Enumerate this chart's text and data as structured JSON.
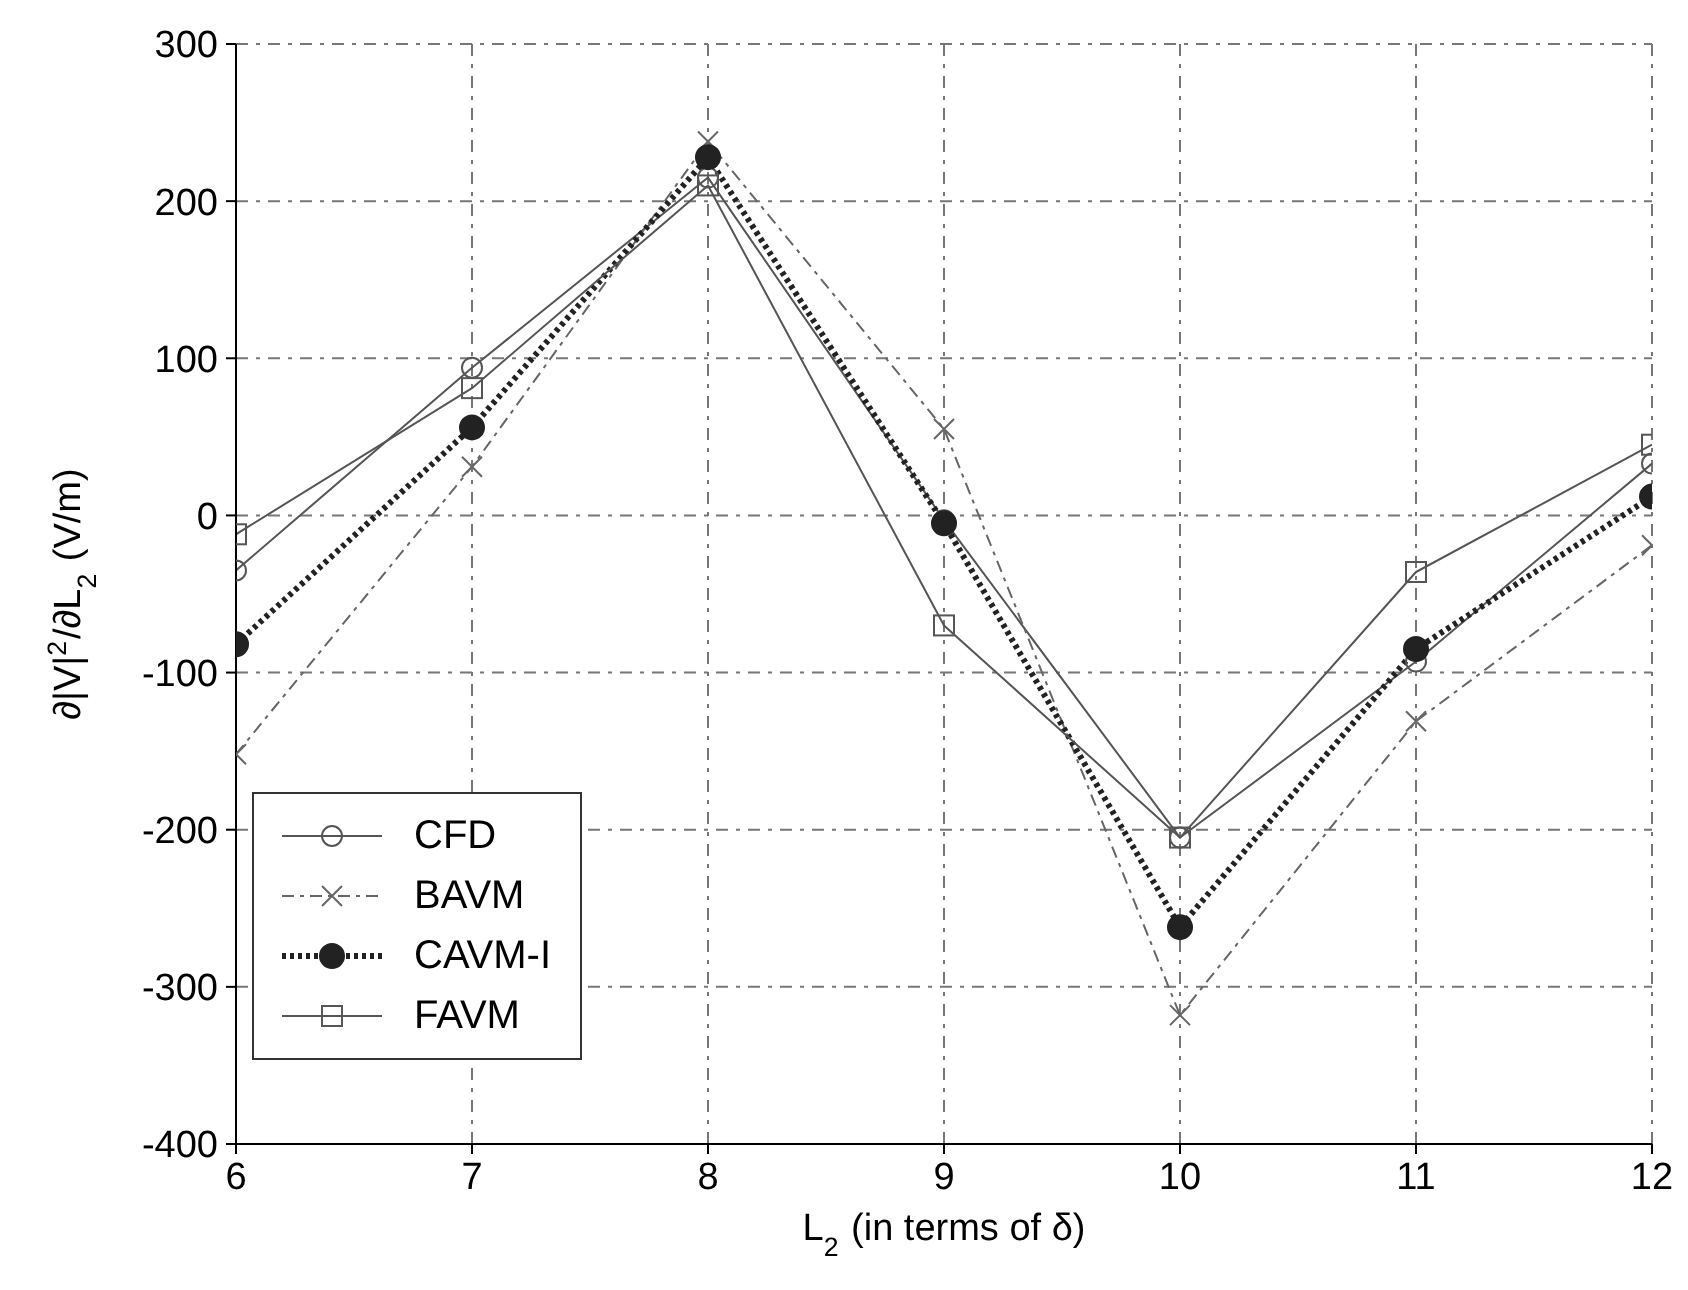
{
  "chart_data": {
    "type": "line",
    "xlabel": "L$_{2}$  (in terms of δ)",
    "ylabel": "∂|V|$^{2}$/∂L$_{2}$  (V/m)",
    "x": [
      6,
      7,
      8,
      9,
      10,
      11,
      12
    ],
    "xlim": [
      6,
      12
    ],
    "xticks": [
      6,
      7,
      8,
      9,
      10,
      11,
      12
    ],
    "ylim": [
      -400,
      300
    ],
    "yticks": [
      -400,
      -300,
      -200,
      -100,
      0,
      100,
      200,
      300
    ],
    "grid": true,
    "legend": "bottom left",
    "series": [
      {
        "name": "CFD",
        "color": "#555555",
        "marker": "circle",
        "line_style": "solid",
        "values": [
          -35,
          94,
          215,
          -3,
          -205,
          -93,
          33
        ]
      },
      {
        "name": "BAVM",
        "color": "#666666",
        "marker": "cross",
        "line_style": "dashed",
        "values": [
          -152,
          31,
          238,
          55,
          -318,
          -131,
          -19
        ]
      },
      {
        "name": "CAVM-I",
        "color": "#222222",
        "marker": "circle",
        "line_style": "dotted",
        "values": [
          -82,
          56,
          228,
          -5,
          -262,
          -85,
          12
        ]
      },
      {
        "name": "FAVM",
        "color": "#555555",
        "marker": "square",
        "line_style": "solid",
        "values": [
          -12,
          81,
          210,
          -70,
          -205,
          -36,
          45
        ]
      }
    ]
  }
}
